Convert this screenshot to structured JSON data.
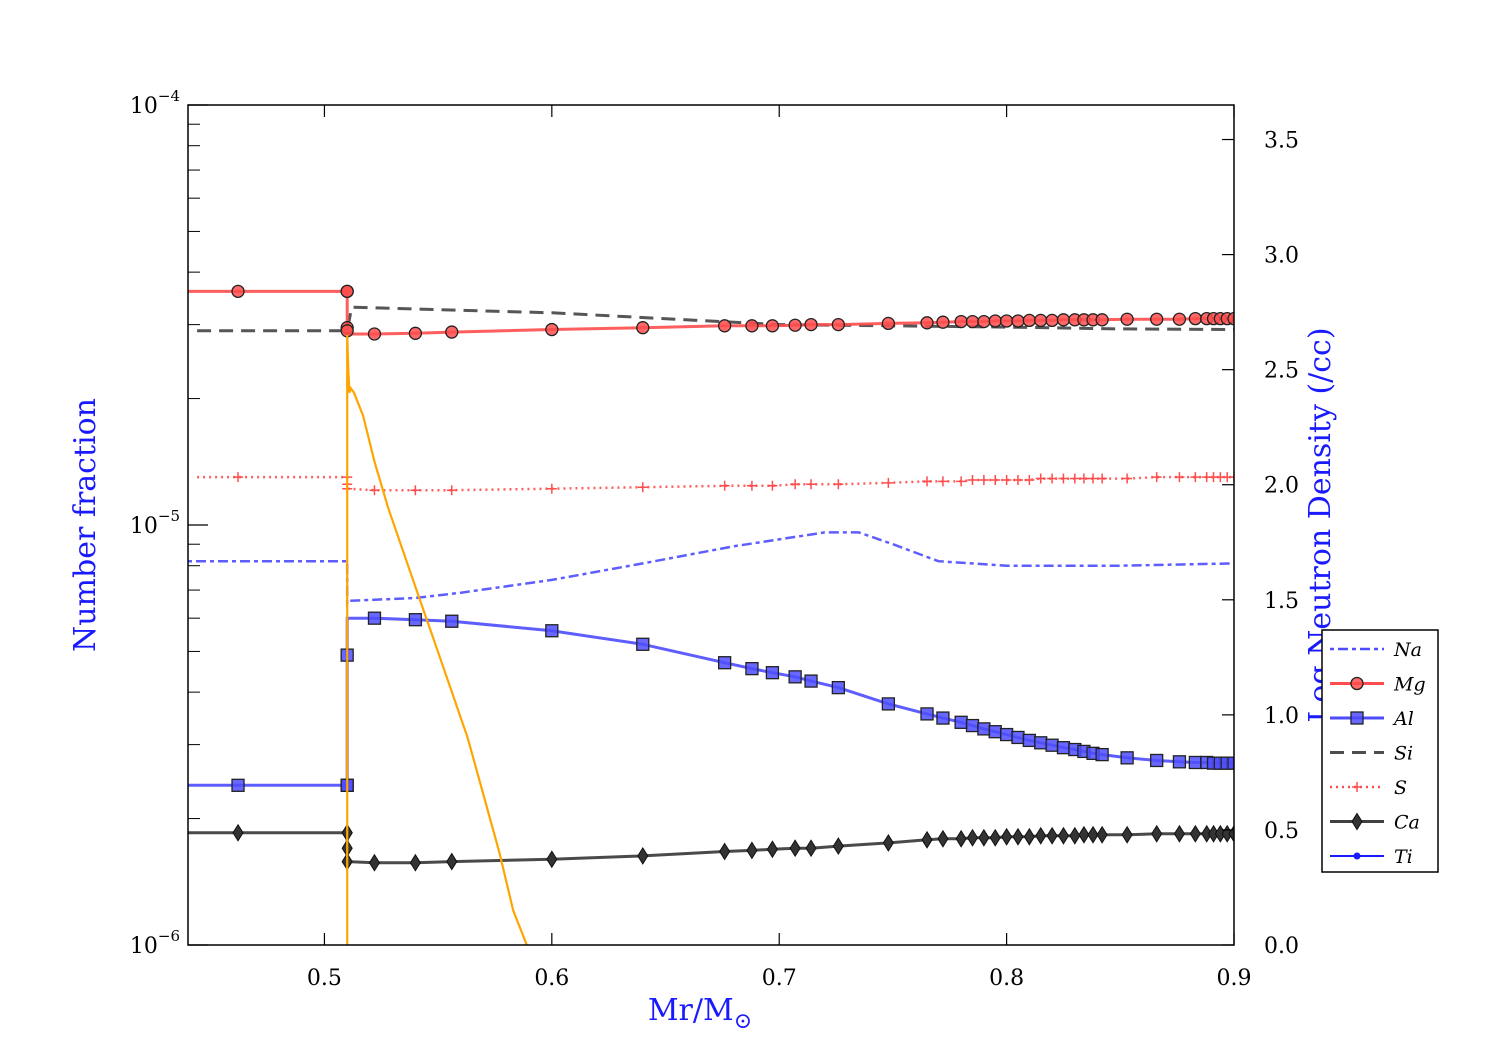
{
  "chart_data": {
    "type": "line",
    "title": "",
    "xlabel": "Mr/M",
    "xlabel_sub": "⊙",
    "ylabel_left": "Number fraction",
    "ylabel_right": "Log Neutron Density (/cc)",
    "xlim": [
      0.44,
      0.9
    ],
    "ylim_left": [
      1e-06,
      0.0001
    ],
    "yscale_left": "log",
    "ylim_right": [
      0.0,
      3.65
    ],
    "x_ticks": [
      0.5,
      0.6,
      0.7,
      0.8,
      0.9
    ],
    "x_tick_labels": [
      "0.5",
      "0.6",
      "0.7",
      "0.8",
      "0.9"
    ],
    "y_left_tick_labels": [
      {
        "mant": "10",
        "exp": "−6",
        "value": 1e-06
      },
      {
        "mant": "10",
        "exp": "−5",
        "value": 1e-05
      },
      {
        "mant": "10",
        "exp": "−4",
        "value": 0.0001
      }
    ],
    "y_right_ticks": [
      0.0,
      0.5,
      1.0,
      1.5,
      2.0,
      2.5,
      3.0,
      3.5
    ],
    "y_right_tick_labels": [
      "0.0",
      "0.5",
      "1.0",
      "1.5",
      "2.0",
      "2.5",
      "3.0",
      "3.5"
    ],
    "legend_position": "lower-right",
    "series": [
      {
        "name": "Na",
        "color": "#4d4dff",
        "dash": "4,4,10,4",
        "width": 2.5,
        "marker": "none",
        "axis": "left",
        "x": [
          0.44,
          0.51,
          0.51,
          0.511,
          0.54,
          0.56,
          0.6,
          0.64,
          0.68,
          0.72,
          0.735,
          0.75,
          0.77,
          0.8,
          0.85,
          0.9
        ],
        "y": [
          8.2e-06,
          8.2e-06,
          6.5e-06,
          6.6e-06,
          6.7e-06,
          6.9e-06,
          7.4e-06,
          8.1e-06,
          8.9e-06,
          9.6e-06,
          9.6e-06,
          9e-06,
          8.2e-06,
          8e-06,
          8e-06,
          8.1e-06
        ]
      },
      {
        "name": "Mg",
        "color": "#ff4d4d",
        "dash": "",
        "width": 3,
        "marker": "circle",
        "axis": "left",
        "x": [
          0.44,
          0.462,
          0.51,
          0.51,
          0.51,
          0.51,
          0.51,
          0.522,
          0.54,
          0.556,
          0.6,
          0.64,
          0.676,
          0.688,
          0.697,
          0.707,
          0.714,
          0.726,
          0.748,
          0.765,
          0.772,
          0.78,
          0.785,
          0.79,
          0.795,
          0.8,
          0.805,
          0.81,
          0.815,
          0.82,
          0.825,
          0.83,
          0.834,
          0.838,
          0.842,
          0.853,
          0.866,
          0.876,
          0.883,
          0.888,
          0.891,
          0.894,
          0.897,
          0.9
        ],
        "y": [
          3.6e-05,
          3.6e-05,
          3.6e-05,
          3.6e-05,
          2.95e-05,
          2.9e-05,
          2.85e-05,
          2.85e-05,
          2.86e-05,
          2.88e-05,
          2.92e-05,
          2.95e-05,
          2.98e-05,
          2.98e-05,
          2.98e-05,
          2.99e-05,
          3e-05,
          3e-05,
          3.02e-05,
          3.03e-05,
          3.04e-05,
          3.05e-05,
          3.05e-05,
          3.05e-05,
          3.06e-05,
          3.06e-05,
          3.06e-05,
          3.07e-05,
          3.07e-05,
          3.07e-05,
          3.08e-05,
          3.08e-05,
          3.08e-05,
          3.08e-05,
          3.08e-05,
          3.09e-05,
          3.09e-05,
          3.09e-05,
          3.1e-05,
          3.1e-05,
          3.1e-05,
          3.1e-05,
          3.1e-05,
          3.1e-05
        ],
        "markers_x": [
          0.462,
          0.51,
          0.51,
          0.51,
          0.51,
          0.522,
          0.54,
          0.556,
          0.6,
          0.64,
          0.676,
          0.688,
          0.697,
          0.707,
          0.714,
          0.726,
          0.748,
          0.765,
          0.772,
          0.78,
          0.785,
          0.79,
          0.795,
          0.8,
          0.805,
          0.81,
          0.815,
          0.82,
          0.825,
          0.83,
          0.834,
          0.838,
          0.842,
          0.853,
          0.866,
          0.876,
          0.883,
          0.888,
          0.891,
          0.894,
          0.897,
          0.9
        ]
      },
      {
        "name": "Al",
        "color": "#4d4dff",
        "dash": "",
        "width": 3,
        "marker": "square",
        "axis": "left",
        "x": [
          0.44,
          0.462,
          0.51,
          0.51,
          0.51,
          0.51,
          0.522,
          0.54,
          0.556,
          0.6,
          0.64,
          0.676,
          0.688,
          0.697,
          0.707,
          0.714,
          0.726,
          0.748,
          0.765,
          0.772,
          0.78,
          0.785,
          0.79,
          0.795,
          0.8,
          0.805,
          0.81,
          0.815,
          0.82,
          0.825,
          0.83,
          0.834,
          0.838,
          0.842,
          0.853,
          0.866,
          0.876,
          0.883,
          0.888,
          0.891,
          0.894,
          0.897,
          0.9
        ],
        "y": [
          2.4e-06,
          2.4e-06,
          2.4e-06,
          2.4e-06,
          4.9e-06,
          6e-06,
          6e-06,
          5.95e-06,
          5.9e-06,
          5.6e-06,
          5.2e-06,
          4.7e-06,
          4.55e-06,
          4.45e-06,
          4.35e-06,
          4.25e-06,
          4.1e-06,
          3.75e-06,
          3.55e-06,
          3.47e-06,
          3.39e-06,
          3.33e-06,
          3.27e-06,
          3.22e-06,
          3.17e-06,
          3.12e-06,
          3.07e-06,
          3.03e-06,
          2.99e-06,
          2.95e-06,
          2.92e-06,
          2.89e-06,
          2.86e-06,
          2.84e-06,
          2.79e-06,
          2.75e-06,
          2.73e-06,
          2.72e-06,
          2.72e-06,
          2.71e-06,
          2.71e-06,
          2.71e-06,
          2.71e-06
        ],
        "markers_x": [
          0.462,
          0.51,
          0.51,
          0.51,
          0.522,
          0.54,
          0.556,
          0.6,
          0.64,
          0.676,
          0.688,
          0.697,
          0.707,
          0.714,
          0.726,
          0.748,
          0.765,
          0.772,
          0.78,
          0.785,
          0.79,
          0.795,
          0.8,
          0.805,
          0.81,
          0.815,
          0.82,
          0.825,
          0.83,
          0.834,
          0.838,
          0.842,
          0.853,
          0.866,
          0.876,
          0.883,
          0.888,
          0.891,
          0.894,
          0.897,
          0.9
        ]
      },
      {
        "name": "Si",
        "color": "#4d4d4d",
        "dash": "14,8",
        "width": 3,
        "marker": "none",
        "axis": "left",
        "x": [
          0.444,
          0.51,
          0.512,
          0.6,
          0.7,
          0.75,
          0.8,
          0.85,
          0.9
        ],
        "y": [
          2.9e-05,
          2.9e-05,
          3.3e-05,
          3.2e-05,
          3e-05,
          2.98e-05,
          2.96e-05,
          2.93e-05,
          2.92e-05
        ]
      },
      {
        "name": "S",
        "color": "#ff4d4d",
        "dash": "2,4",
        "width": 2.5,
        "marker": "plus",
        "axis": "left",
        "x": [
          0.444,
          0.462,
          0.51,
          0.51,
          0.51,
          0.522,
          0.54,
          0.556,
          0.6,
          0.64,
          0.676,
          0.688,
          0.697,
          0.707,
          0.714,
          0.726,
          0.748,
          0.765,
          0.772,
          0.78,
          0.785,
          0.79,
          0.795,
          0.8,
          0.805,
          0.81,
          0.815,
          0.82,
          0.825,
          0.83,
          0.834,
          0.838,
          0.842,
          0.853,
          0.866,
          0.876,
          0.883,
          0.888,
          0.891,
          0.894,
          0.897,
          0.9
        ],
        "y": [
          1.3e-05,
          1.3e-05,
          1.3e-05,
          1.25e-05,
          1.22e-05,
          1.21e-05,
          1.21e-05,
          1.21e-05,
          1.22e-05,
          1.23e-05,
          1.24e-05,
          1.24e-05,
          1.24e-05,
          1.25e-05,
          1.25e-05,
          1.25e-05,
          1.26e-05,
          1.27e-05,
          1.27e-05,
          1.27e-05,
          1.28e-05,
          1.28e-05,
          1.28e-05,
          1.28e-05,
          1.28e-05,
          1.28e-05,
          1.29e-05,
          1.29e-05,
          1.29e-05,
          1.29e-05,
          1.29e-05,
          1.29e-05,
          1.29e-05,
          1.29e-05,
          1.3e-05,
          1.3e-05,
          1.3e-05,
          1.3e-05,
          1.3e-05,
          1.3e-05,
          1.3e-05,
          1.3e-05
        ],
        "markers_x": [
          0.462,
          0.51,
          0.51,
          0.51,
          0.522,
          0.54,
          0.556,
          0.6,
          0.64,
          0.676,
          0.688,
          0.697,
          0.707,
          0.714,
          0.726,
          0.748,
          0.765,
          0.772,
          0.78,
          0.785,
          0.79,
          0.795,
          0.8,
          0.805,
          0.81,
          0.815,
          0.82,
          0.825,
          0.83,
          0.834,
          0.838,
          0.842,
          0.853,
          0.866,
          0.876,
          0.883,
          0.888,
          0.891,
          0.894,
          0.897,
          0.9
        ]
      },
      {
        "name": "Ca",
        "color": "#404040",
        "dash": "",
        "width": 3,
        "marker": "diamond",
        "axis": "left",
        "x": [
          0.44,
          0.462,
          0.51,
          0.51,
          0.51,
          0.51,
          0.522,
          0.54,
          0.556,
          0.6,
          0.64,
          0.676,
          0.688,
          0.697,
          0.707,
          0.714,
          0.726,
          0.748,
          0.765,
          0.772,
          0.78,
          0.785,
          0.79,
          0.795,
          0.8,
          0.805,
          0.81,
          0.815,
          0.82,
          0.825,
          0.83,
          0.834,
          0.838,
          0.842,
          0.853,
          0.866,
          0.876,
          0.883,
          0.888,
          0.891,
          0.894,
          0.897,
          0.9
        ],
        "y": [
          1.85e-06,
          1.85e-06,
          1.85e-06,
          1.85e-06,
          1.7e-06,
          1.58e-06,
          1.57e-06,
          1.57e-06,
          1.58e-06,
          1.6e-06,
          1.63e-06,
          1.67e-06,
          1.68e-06,
          1.69e-06,
          1.7e-06,
          1.7e-06,
          1.72e-06,
          1.75e-06,
          1.78e-06,
          1.79e-06,
          1.79e-06,
          1.8e-06,
          1.8e-06,
          1.8e-06,
          1.81e-06,
          1.81e-06,
          1.81e-06,
          1.82e-06,
          1.82e-06,
          1.82e-06,
          1.82e-06,
          1.83e-06,
          1.83e-06,
          1.83e-06,
          1.83e-06,
          1.84e-06,
          1.84e-06,
          1.84e-06,
          1.84e-06,
          1.84e-06,
          1.84e-06,
          1.84e-06,
          1.84e-06
        ],
        "markers_x": [
          0.462,
          0.51,
          0.51,
          0.51,
          0.51,
          0.522,
          0.54,
          0.556,
          0.6,
          0.64,
          0.676,
          0.688,
          0.697,
          0.707,
          0.714,
          0.726,
          0.748,
          0.765,
          0.772,
          0.78,
          0.785,
          0.79,
          0.795,
          0.8,
          0.805,
          0.81,
          0.815,
          0.82,
          0.825,
          0.83,
          0.834,
          0.838,
          0.842,
          0.853,
          0.866,
          0.876,
          0.883,
          0.888,
          0.891,
          0.894,
          0.897,
          0.9
        ]
      },
      {
        "name": "Ti",
        "color": "#1a1aff",
        "dash": "",
        "width": 2,
        "marker": "dot",
        "axis": "left",
        "x": [],
        "y": [],
        "markers_x": []
      }
    ],
    "neutron_density": {
      "name": "Log Neutron Density",
      "color": "#ffa500",
      "axis": "right",
      "x": [
        0.51,
        0.51,
        0.5105,
        0.511,
        0.5115,
        0.513,
        0.517,
        0.522,
        0.528,
        0.535,
        0.542,
        0.549,
        0.556,
        0.563,
        0.57,
        0.577,
        0.583,
        0.587,
        0.589
      ],
      "y": [
        0.0,
        2.65,
        2.5,
        2.4,
        2.42,
        2.4,
        2.3,
        2.1,
        1.9,
        1.7,
        1.5,
        1.3,
        1.1,
        0.9,
        0.65,
        0.4,
        0.15,
        0.05,
        0.0
      ]
    }
  }
}
